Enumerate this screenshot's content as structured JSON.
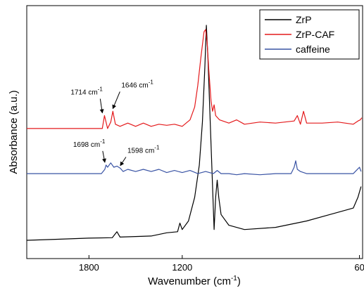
{
  "chart_data": {
    "type": "line",
    "xlabel": "Wavenumber (cm",
    "xlabel_sup": "-1",
    "xlabel_close": ")",
    "ylabel": "Absorbance (a.u.)",
    "xlim": [
      2200,
      40
    ],
    "x_reversed": true,
    "x_ticks": [
      {
        "value": 1800,
        "label": "1800"
      },
      {
        "value": 1200,
        "label": "1200"
      },
      {
        "value": 60,
        "label": "60"
      }
    ],
    "legend_position": "top-right",
    "series": [
      {
        "name": "ZrP",
        "color": "#000000",
        "points": [
          [
            2200,
            0.0
          ],
          [
            2000,
            0.005
          ],
          [
            1800,
            0.01
          ],
          [
            1650,
            0.012
          ],
          [
            1620,
            0.04
          ],
          [
            1600,
            0.015
          ],
          [
            1400,
            0.02
          ],
          [
            1300,
            0.035
          ],
          [
            1230,
            0.04
          ],
          [
            1215,
            0.08
          ],
          [
            1200,
            0.05
          ],
          [
            1160,
            0.09
          ],
          [
            1120,
            0.2
          ],
          [
            1090,
            0.35
          ],
          [
            1070,
            0.55
          ],
          [
            1055,
            0.8
          ],
          [
            1045,
            1.0
          ],
          [
            1035,
            0.85
          ],
          [
            1020,
            0.55
          ],
          [
            1005,
            0.25
          ],
          [
            995,
            0.05
          ],
          [
            985,
            0.2
          ],
          [
            975,
            0.28
          ],
          [
            965,
            0.2
          ],
          [
            950,
            0.12
          ],
          [
            900,
            0.07
          ],
          [
            800,
            0.05
          ],
          [
            600,
            0.06
          ],
          [
            400,
            0.09
          ],
          [
            250,
            0.12
          ],
          [
            150,
            0.14
          ],
          [
            100,
            0.15
          ],
          [
            70,
            0.2
          ],
          [
            50,
            0.25
          ]
        ]
      },
      {
        "name": "ZrP-CAF",
        "color": "#e41a1c",
        "points": [
          [
            2200,
            0.52
          ],
          [
            1800,
            0.52
          ],
          [
            1714,
            0.52
          ],
          [
            1700,
            0.58
          ],
          [
            1680,
            0.52
          ],
          [
            1660,
            0.55
          ],
          [
            1646,
            0.6
          ],
          [
            1630,
            0.54
          ],
          [
            1600,
            0.53
          ],
          [
            1550,
            0.545
          ],
          [
            1500,
            0.53
          ],
          [
            1450,
            0.545
          ],
          [
            1400,
            0.53
          ],
          [
            1350,
            0.54
          ],
          [
            1300,
            0.535
          ],
          [
            1250,
            0.54
          ],
          [
            1200,
            0.53
          ],
          [
            1150,
            0.56
          ],
          [
            1120,
            0.62
          ],
          [
            1100,
            0.72
          ],
          [
            1080,
            0.85
          ],
          [
            1060,
            0.97
          ],
          [
            1050,
            0.98
          ],
          [
            1040,
            0.92
          ],
          [
            1030,
            0.8
          ],
          [
            1015,
            0.65
          ],
          [
            1005,
            0.6
          ],
          [
            995,
            0.63
          ],
          [
            985,
            0.58
          ],
          [
            960,
            0.56
          ],
          [
            900,
            0.545
          ],
          [
            850,
            0.56
          ],
          [
            800,
            0.54
          ],
          [
            700,
            0.55
          ],
          [
            600,
            0.545
          ],
          [
            480,
            0.555
          ],
          [
            460,
            0.58
          ],
          [
            440,
            0.54
          ],
          [
            420,
            0.6
          ],
          [
            400,
            0.545
          ],
          [
            300,
            0.545
          ],
          [
            200,
            0.55
          ],
          [
            100,
            0.54
          ],
          [
            70,
            0.555
          ],
          [
            55,
            0.56
          ],
          [
            45,
            0.57
          ]
        ]
      },
      {
        "name": "caffeine",
        "color": "#3953a4",
        "points": [
          [
            2200,
            0.31
          ],
          [
            1800,
            0.31
          ],
          [
            1720,
            0.31
          ],
          [
            1698,
            0.33
          ],
          [
            1690,
            0.35
          ],
          [
            1680,
            0.34
          ],
          [
            1660,
            0.36
          ],
          [
            1640,
            0.34
          ],
          [
            1620,
            0.345
          ],
          [
            1598,
            0.335
          ],
          [
            1580,
            0.32
          ],
          [
            1550,
            0.33
          ],
          [
            1500,
            0.32
          ],
          [
            1450,
            0.33
          ],
          [
            1400,
            0.32
          ],
          [
            1350,
            0.33
          ],
          [
            1300,
            0.315
          ],
          [
            1250,
            0.325
          ],
          [
            1200,
            0.315
          ],
          [
            1150,
            0.325
          ],
          [
            1100,
            0.31
          ],
          [
            1050,
            0.32
          ],
          [
            1000,
            0.31
          ],
          [
            975,
            0.325
          ],
          [
            950,
            0.31
          ],
          [
            900,
            0.31
          ],
          [
            850,
            0.305
          ],
          [
            800,
            0.31
          ],
          [
            700,
            0.305
          ],
          [
            600,
            0.31
          ],
          [
            500,
            0.31
          ],
          [
            480,
            0.34
          ],
          [
            470,
            0.37
          ],
          [
            460,
            0.33
          ],
          [
            440,
            0.32
          ],
          [
            400,
            0.31
          ],
          [
            300,
            0.31
          ],
          [
            200,
            0.31
          ],
          [
            100,
            0.31
          ],
          [
            60,
            0.34
          ],
          [
            50,
            0.32
          ]
        ]
      }
    ],
    "annotations": [
      {
        "text": "1714 cm",
        "sup": "-1",
        "target": [
          1714,
          0.58
        ]
      },
      {
        "text": "1646 cm",
        "sup": "-1",
        "target": [
          1646,
          0.6
        ]
      },
      {
        "text": "1698 cm",
        "sup": "-1",
        "target": [
          1698,
          0.35
        ]
      },
      {
        "text": "1598 cm",
        "sup": "-1",
        "target": [
          1598,
          0.335
        ]
      }
    ]
  }
}
